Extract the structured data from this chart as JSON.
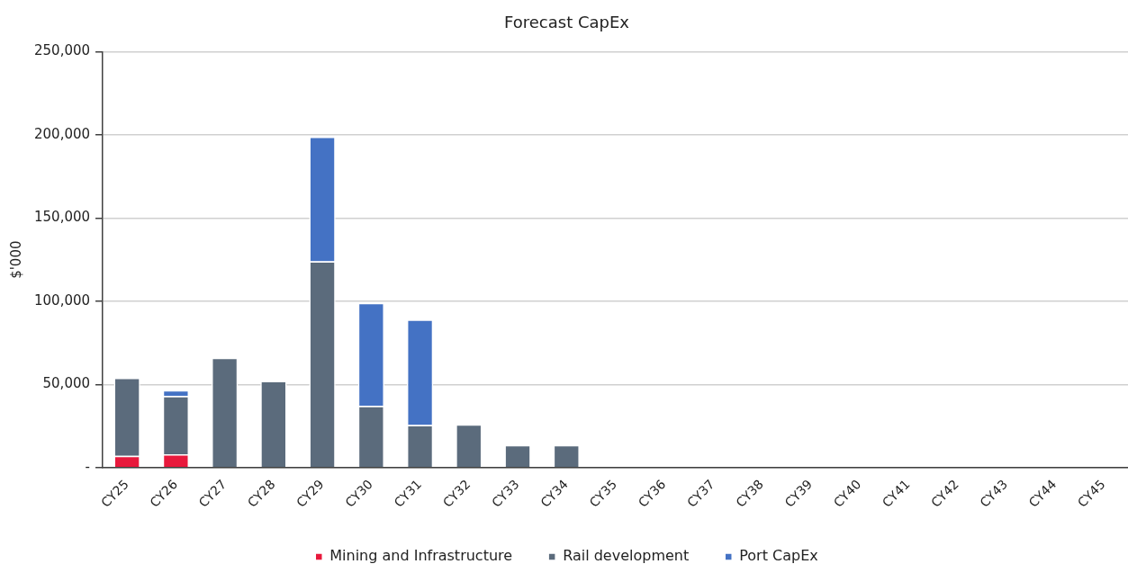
{
  "chart_data": {
    "type": "bar",
    "title": "Forecast CapEx",
    "ylabel": "$'000",
    "stacked": true,
    "categories": [
      "CY25",
      "CY26",
      "CY27",
      "CY28",
      "CY29",
      "CY30",
      "CY31",
      "CY32",
      "CY33",
      "CY34",
      "CY35",
      "CY36",
      "CY37",
      "CY38",
      "CY39",
      "CY40",
      "CY41",
      "CY42",
      "CY43",
      "CY44",
      "CY45"
    ],
    "series": [
      {
        "name": "Mining and Infrastructure",
        "color": "#e8193c",
        "values": [
          7000,
          8000,
          0,
          0,
          0,
          0,
          0,
          0,
          0,
          0,
          0,
          0,
          0,
          0,
          0,
          0,
          0,
          0,
          0,
          0,
          0
        ]
      },
      {
        "name": "Rail development",
        "color": "#5b6b7c",
        "values": [
          47000,
          35000,
          66000,
          52000,
          124000,
          37000,
          25500,
          26000,
          13500,
          13500,
          0,
          0,
          0,
          0,
          0,
          0,
          0,
          0,
          0,
          0,
          0
        ]
      },
      {
        "name": "Port CapEx",
        "color": "#4472c4",
        "values": [
          0,
          3500,
          0,
          0,
          75000,
          62000,
          63500,
          0,
          0,
          0,
          0,
          0,
          0,
          0,
          0,
          0,
          0,
          0,
          0,
          0,
          0
        ]
      }
    ],
    "ylim": [
      0,
      250000
    ],
    "yticks": [
      {
        "value": 0,
        "label": "-"
      },
      {
        "value": 50000,
        "label": "50,000"
      },
      {
        "value": 100000,
        "label": "100,000"
      },
      {
        "value": 150000,
        "label": "150,000"
      },
      {
        "value": 200000,
        "label": "200,000"
      },
      {
        "value": 250000,
        "label": "250,000"
      }
    ],
    "grid": "y",
    "legend": "bottom"
  }
}
